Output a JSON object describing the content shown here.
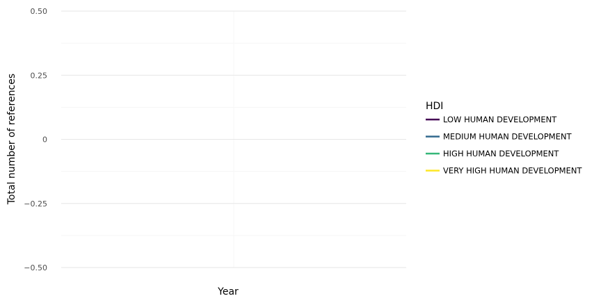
{
  "chart_data": {
    "type": "line",
    "title": "",
    "xlabel": "Year",
    "ylabel": "Total number of references",
    "ylim": [
      -0.5,
      0.5
    ],
    "y_ticks": [
      {
        "value": 0.5,
        "label": "0.50"
      },
      {
        "value": 0.25,
        "label": "0.25"
      },
      {
        "value": 0,
        "label": "0"
      },
      {
        "value": -0.25,
        "label": "−0.25"
      },
      {
        "value": -0.5,
        "label": "−0.50"
      }
    ],
    "grid": true,
    "legend": {
      "title": "HDI",
      "placement": "right"
    },
    "series": [
      {
        "name": "LOW HUMAN DEVELOPMENT",
        "color": "#440154",
        "values": []
      },
      {
        "name": "MEDIUM HUMAN DEVELOPMENT",
        "color": "#31688e",
        "values": []
      },
      {
        "name": "HIGH HUMAN DEVELOPMENT",
        "color": "#35b779",
        "values": []
      },
      {
        "name": "VERY HIGH HUMAN DEVELOPMENT",
        "color": "#fde725",
        "values": []
      }
    ]
  }
}
